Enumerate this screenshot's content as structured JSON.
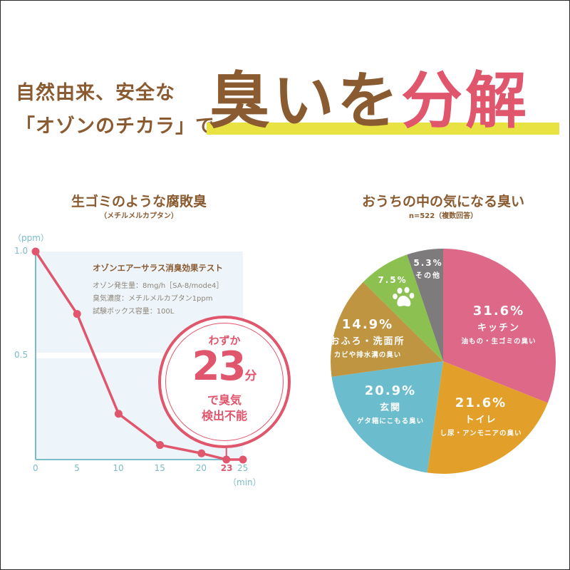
{
  "header": {
    "sub_line1": "自然由来、安全な",
    "sub_line2": "「オゾンのチカラ」で",
    "main_part1": "臭いを",
    "main_part2": "分解"
  },
  "colors": {
    "brown": "#8a5a30",
    "pink": "#e0566c",
    "highlight": "#e8e243",
    "axis": "#7bbcc9",
    "plot_bg": "#edf4fa",
    "kitchen": "#de6888",
    "toilet": "#e2a02a",
    "entrance": "#6bbccc",
    "bath": "#bf9542",
    "pet": "#8cc152",
    "other": "#7d7b7c"
  },
  "line_section": {
    "title": "生ゴミのような腐敗臭",
    "subtitle": "（メチルメルカプタン）",
    "test_box": {
      "title": "オゾンエアーサラス消臭効果テスト",
      "lines": [
        "オゾン発生量：8mg/h［SA-8/mode4］",
        "臭気濃度：メチルメルカプタン1ppm",
        "試験ボックス容量：100L"
      ]
    },
    "callout": {
      "line1": "わずか",
      "number": "23",
      "unit": "分",
      "line3": "で臭気",
      "line4": "検出不能"
    }
  },
  "pie_section": {
    "title": "おうちの中の気になる臭い",
    "subtitle": "n=522（複数回答）"
  },
  "chart_data": [
    {
      "type": "line",
      "title": "生ゴミのような腐敗臭（メチルメルカプタン）",
      "xlabel": "（min）",
      "ylabel": "（ppm）",
      "x_ticks": [
        "0",
        "5",
        "10",
        "15",
        "20",
        "23",
        "25"
      ],
      "highlight_tick": "23",
      "y_ticks": [
        "0.5",
        "1.0"
      ],
      "xlim": [
        0,
        25
      ],
      "ylim": [
        0,
        1.0
      ],
      "grid": "white line at 0.5",
      "series": [
        {
          "name": "メチルメルカプタン濃度",
          "x": [
            0,
            5,
            10,
            15,
            20,
            23,
            25
          ],
          "y": [
            1.0,
            0.7,
            0.22,
            0.07,
            0.03,
            0.0,
            0.0
          ]
        }
      ],
      "annotation": "わずか23分で臭気検出不能"
    },
    {
      "type": "pie",
      "title": "おうちの中の気になる臭い",
      "subtitle": "n=522（複数回答）",
      "slices": [
        {
          "label": "キッチン",
          "desc": "油もの・生ゴミの臭い",
          "value": 31.6,
          "pct": "31.6%",
          "color": "#de6888"
        },
        {
          "label": "トイレ",
          "desc": "し尿・アンモニアの臭い",
          "value": 21.6,
          "pct": "21.6%",
          "color": "#e2a02a"
        },
        {
          "label": "玄関",
          "desc": "ゲタ箱にこもる臭い",
          "value": 20.9,
          "pct": "20.9%",
          "color": "#6bbccc"
        },
        {
          "label": "おふろ・洗面所",
          "desc": "カビや排水溝の臭い",
          "value": 14.9,
          "pct": "14.9%",
          "color": "#bf9542"
        },
        {
          "label": "ペット",
          "desc": "",
          "value": 7.5,
          "pct": "7.5%",
          "color": "#8cc152",
          "icon": "paw-icon"
        },
        {
          "label": "その他",
          "desc": "",
          "value": 5.3,
          "pct": "5.3%",
          "color": "#7d7b7c"
        }
      ]
    }
  ]
}
